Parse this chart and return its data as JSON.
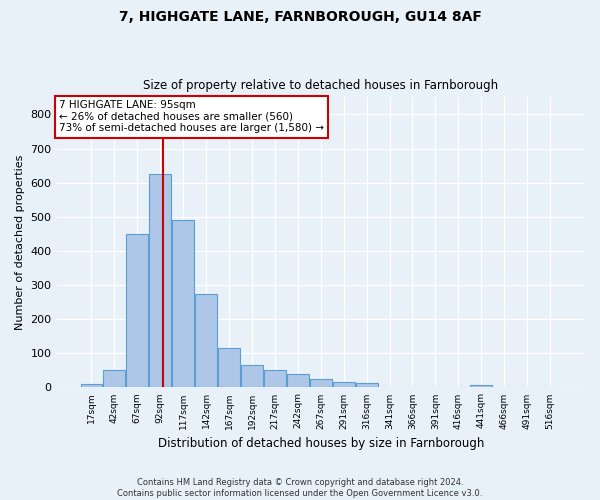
{
  "title1": "7, HIGHGATE LANE, FARNBOROUGH, GU14 8AF",
  "title2": "Size of property relative to detached houses in Farnborough",
  "xlabel": "Distribution of detached houses by size in Farnborough",
  "ylabel": "Number of detached properties",
  "footnote": "Contains HM Land Registry data © Crown copyright and database right 2024.\nContains public sector information licensed under the Open Government Licence v3.0.",
  "bin_labels": [
    "17sqm",
    "42sqm",
    "67sqm",
    "92sqm",
    "117sqm",
    "142sqm",
    "167sqm",
    "192sqm",
    "217sqm",
    "242sqm",
    "267sqm",
    "291sqm",
    "316sqm",
    "341sqm",
    "366sqm",
    "391sqm",
    "416sqm",
    "441sqm",
    "466sqm",
    "491sqm",
    "516sqm"
  ],
  "bar_values": [
    10,
    50,
    450,
    625,
    490,
    275,
    115,
    65,
    50,
    38,
    25,
    15,
    13,
    0,
    0,
    0,
    0,
    8,
    0,
    0,
    0
  ],
  "bar_color": "#aec6e8",
  "bar_edge_color": "#5a9fd4",
  "background_color": "#e8f0f8",
  "grid_color": "#ffffff",
  "vline_x": 3.12,
  "vline_color": "#cc0000",
  "annotation_text": "7 HIGHGATE LANE: 95sqm\n← 26% of detached houses are smaller (560)\n73% of semi-detached houses are larger (1,580) →",
  "annotation_box_color": "#ffffff",
  "annotation_box_edge_color": "#cc0000",
  "ylim": [
    0,
    850
  ],
  "yticks": [
    0,
    100,
    200,
    300,
    400,
    500,
    600,
    700,
    800
  ]
}
